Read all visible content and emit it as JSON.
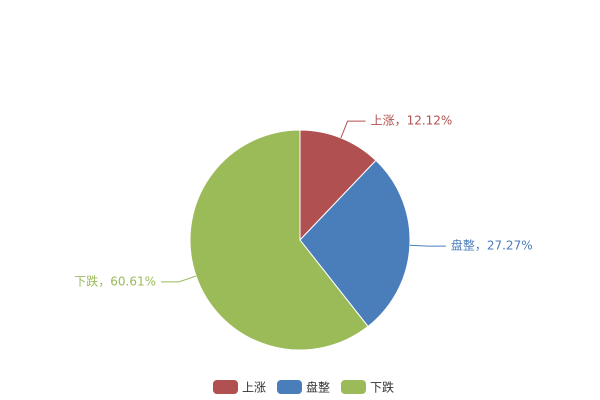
{
  "chart_data": {
    "type": "pie",
    "categories": [
      "上涨",
      "盘整",
      "下跌"
    ],
    "values": [
      12.12,
      27.27,
      60.61
    ],
    "value_labels": [
      "上涨，12.12%",
      "盘整，27.27%",
      "下跌，60.61%"
    ],
    "colors": [
      "#b05050",
      "#4a7ebb",
      "#9bbb59"
    ],
    "legend": "bottom"
  }
}
